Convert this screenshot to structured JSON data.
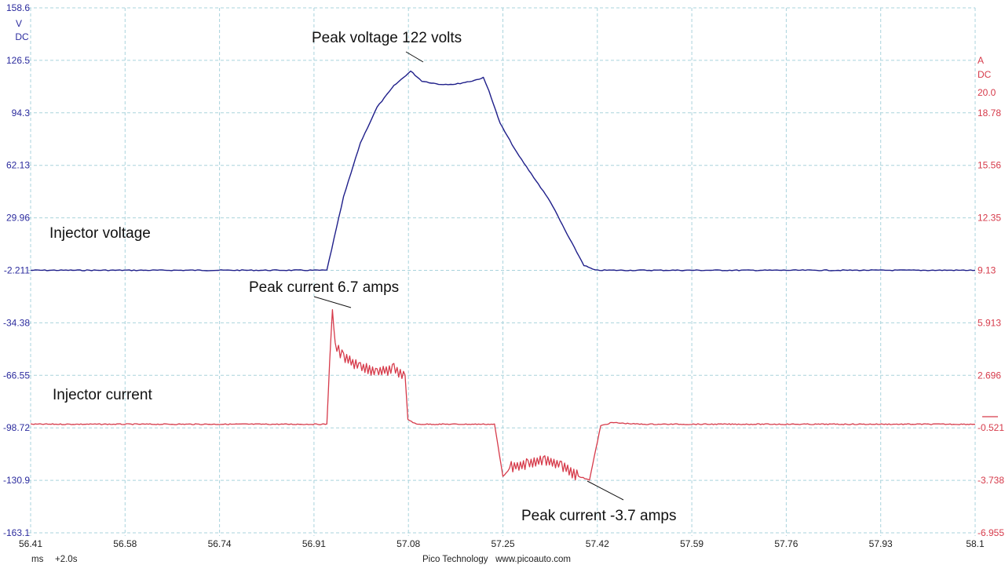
{
  "chart_data": {
    "type": "line",
    "title": "",
    "xlabel": "ms",
    "x_offset": "+2.0s",
    "xlim": [
      56.41,
      58.1
    ],
    "x_ticks": [
      "56.41",
      "56.58",
      "56.74",
      "56.91",
      "57.08",
      "57.25",
      "57.42",
      "57.59",
      "57.76",
      "57.93",
      "58.1"
    ],
    "grid": true,
    "left_axis": {
      "unit": "V",
      "coupling": "DC",
      "color": "#2b2b9e",
      "ylim": [
        -163.1,
        158.6
      ],
      "ticks": [
        "158.6",
        "126.5",
        "94.3",
        "62.13",
        "29.96",
        "-2.211",
        "-34.38",
        "-66.55",
        "-98.72",
        "-130.9",
        "-163.1"
      ]
    },
    "right_axis": {
      "unit": "A",
      "coupling": "DC",
      "color": "#d63a4a",
      "top_label": "20.0",
      "ylim": [
        -6.955,
        20.0
      ],
      "ticks": [
        "18.78",
        "15.56",
        "12.35",
        "9.13",
        "5.913",
        "2.696",
        "-0.521",
        "-3.738",
        "-6.955"
      ]
    },
    "series": [
      {
        "name": "Injector voltage",
        "axis": "left",
        "unit": "V",
        "color": "#1f1f8a",
        "x": [
          56.41,
          56.91,
          56.94,
          56.97,
          57.0,
          57.03,
          57.06,
          57.09,
          57.11,
          57.14,
          57.17,
          57.2,
          57.22,
          57.23,
          57.25,
          57.28,
          57.31,
          57.34,
          57.37,
          57.4,
          57.42,
          57.5,
          58.1
        ],
        "values": [
          0,
          0,
          0,
          45,
          78,
          100,
          113,
          122,
          116,
          114,
          114,
          116,
          118,
          110,
          90,
          72,
          57,
          42,
          22,
          3,
          0,
          0,
          0
        ]
      },
      {
        "name": "Injector current",
        "axis": "right",
        "unit": "A",
        "color": "#d63a4a",
        "x": [
          56.41,
          56.91,
          56.94,
          56.945,
          56.95,
          56.955,
          56.97,
          57.0,
          57.03,
          57.06,
          57.08,
          57.085,
          57.1,
          57.15,
          57.2,
          57.24,
          57.255,
          57.27,
          57.3,
          57.33,
          57.36,
          57.39,
          57.41,
          57.43,
          57.45,
          57.5,
          58.1
        ],
        "values": [
          -0.3,
          -0.3,
          -0.3,
          3.5,
          6.7,
          4.5,
          3.8,
          3.2,
          2.9,
          3.1,
          2.7,
          0.0,
          -0.3,
          -0.3,
          -0.3,
          -0.3,
          -3.5,
          -2.9,
          -2.7,
          -2.5,
          -2.8,
          -3.5,
          -3.7,
          -0.4,
          -0.2,
          -0.3,
          -0.3
        ]
      }
    ],
    "annotations": [
      {
        "text": "Peak voltage 122 volts",
        "series": "Injector voltage",
        "x": 57.09,
        "y": 122
      },
      {
        "text": "Peak current 6.7 amps",
        "series": "Injector current",
        "x": 56.95,
        "y": 6.7
      },
      {
        "text": "Peak current -3.7 amps",
        "series": "Injector current",
        "x": 57.41,
        "y": -3.7
      }
    ],
    "legend": "inline labels on traces"
  },
  "labels": {
    "left_unit": "V",
    "left_coupling": "DC",
    "right_unit": "A",
    "right_coupling": "DC",
    "right_top": "20.0",
    "voltage_trace": "Injector voltage",
    "current_trace": "Injector current",
    "peak_voltage": "Peak voltage 122 volts",
    "peak_current_pos": "Peak current 6.7 amps",
    "peak_current_neg": "Peak current -3.7 amps",
    "x_unit": "ms",
    "x_offset": "+2.0s",
    "footer": "Pico Technology   www.picoauto.com"
  }
}
